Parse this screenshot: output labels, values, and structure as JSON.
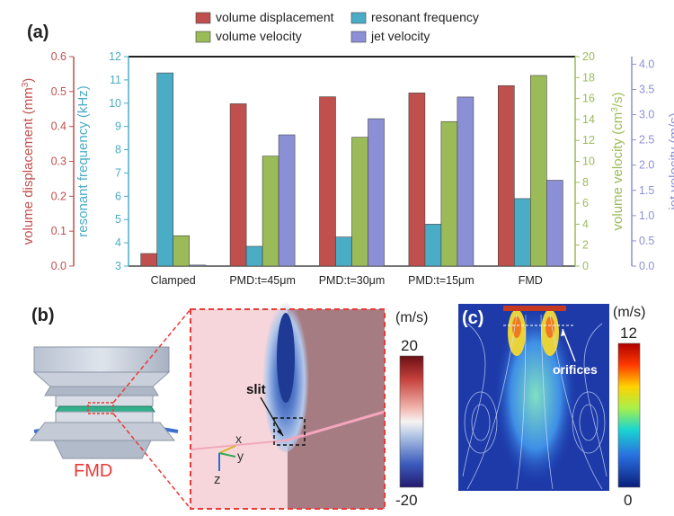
{
  "panels": {
    "a_label": "(a)",
    "b_label": "(b)",
    "c_label": "(c)"
  },
  "chart_data": {
    "type": "bar",
    "categories": [
      "Clamped",
      "PMD:t=45μm",
      "PMD:t=30μm",
      "PMD:t=15μm",
      "FMD"
    ],
    "series": [
      {
        "name": "volume displacement",
        "axis": "volume displacement (mm³)",
        "color": "#c0504d",
        "values": [
          0.036,
          0.465,
          0.485,
          0.496,
          0.517
        ]
      },
      {
        "name": "resonant frequency",
        "axis": "resonant frequency (kHz)",
        "color": "#4bacc6",
        "values": [
          11.3,
          3.85,
          4.25,
          4.8,
          5.9
        ]
      },
      {
        "name": "volume velocity",
        "axis": "volume velocity (cm³/s)",
        "color": "#9bbb59",
        "values": [
          2.9,
          10.5,
          12.3,
          13.8,
          18.2
        ]
      },
      {
        "name": "jet velocity",
        "axis": "jet velocity (m/s)",
        "color": "#8b8fd6",
        "values": [
          0.02,
          2.6,
          2.92,
          3.35,
          1.7
        ]
      }
    ],
    "axes": {
      "left1": {
        "label": "volume displacement (mm",
        "sup": "3",
        "close": ")",
        "ticks": [
          "0.0",
          "0.1",
          "0.2",
          "0.3",
          "0.4",
          "0.5",
          "0.6"
        ],
        "range": [
          0,
          0.6
        ],
        "color": "#c0504d"
      },
      "left2": {
        "label": "resonant frequency (kHz)",
        "ticks": [
          "3",
          "4",
          "5",
          "6",
          "7",
          "8",
          "9",
          "10",
          "11",
          "12"
        ],
        "range": [
          3,
          12
        ],
        "color": "#4bacc6"
      },
      "right1": {
        "label": "volume velocity (cm",
        "sup": "3",
        "close": "/s)",
        "ticks": [
          "0",
          "2",
          "4",
          "6",
          "8",
          "10",
          "12",
          "14",
          "16",
          "18",
          "20"
        ],
        "range": [
          0,
          20
        ],
        "color": "#9bbb59"
      },
      "right2": {
        "label": "jet velocity (m/s)",
        "ticks": [
          "0.0",
          "0.5",
          "1.0",
          "1.5",
          "2.0",
          "2.5",
          "3.0",
          "3.5",
          "4.0"
        ],
        "range": [
          0,
          4.15
        ],
        "color": "#8b8fd6"
      }
    },
    "legend_position": "top"
  },
  "panel_b": {
    "model_label": "FMD",
    "slit_label": "slit",
    "unit_label": "(m/s)",
    "colorbar_max": "20",
    "colorbar_min": "-20",
    "axis_x": "x",
    "axis_y": "y",
    "axis_z": "z"
  },
  "panel_c": {
    "unit_label": "(m/s)",
    "orifices_label": "orifices",
    "colorbar_max": "12",
    "colorbar_min": "0"
  }
}
